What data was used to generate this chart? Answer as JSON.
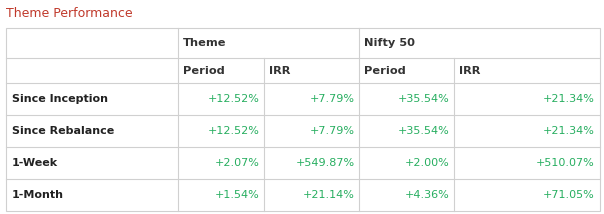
{
  "title": "Theme Performance",
  "title_color": "#c0392b",
  "background_color": "#ffffff",
  "border_color": "#d0d0d0",
  "header1_labels": [
    "Theme",
    "Nifty 50"
  ],
  "header2_labels": [
    "Period",
    "IRR",
    "Period",
    "IRR"
  ],
  "rows": [
    [
      "Since Inception",
      "+12.52%",
      "+7.79%",
      "+35.54%",
      "+21.34%"
    ],
    [
      "Since Rebalance",
      "+12.52%",
      "+7.79%",
      "+35.54%",
      "+21.34%"
    ],
    [
      "1-Week",
      "+2.07%",
      "+549.87%",
      "+2.00%",
      "+510.07%"
    ],
    [
      "1-Month",
      "+1.54%",
      "+21.14%",
      "+4.36%",
      "+71.05%"
    ]
  ],
  "row_label_color": "#222222",
  "value_color": "#27ae60",
  "header_color": "#333333",
  "figwidth": 6.04,
  "figheight": 2.14,
  "dpi": 100,
  "title_fontsize": 9.0,
  "header_fontsize": 8.2,
  "data_fontsize": 8.0
}
